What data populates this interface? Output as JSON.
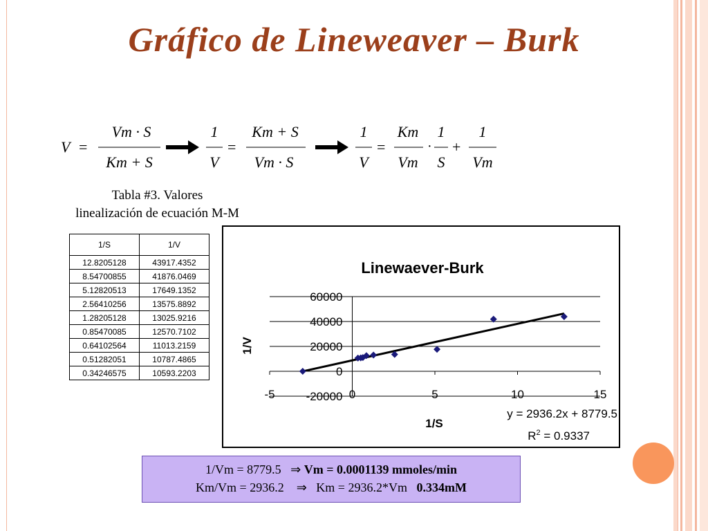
{
  "slide": {
    "title": "Gráfico de Lineweaver – Burk",
    "caption_line1": "Tabla #3. Valores",
    "caption_line2": "linealización de ecuación M-M"
  },
  "equations": {
    "eq1_lhs": "V",
    "eq1_num": "Vm · S",
    "eq1_den": "Km + S",
    "eq2_lhs_num": "1",
    "eq2_lhs_den": "V",
    "eq2_num": "Km + S",
    "eq2_den": "Vm · S",
    "eq3_lhs_num": "1",
    "eq3_lhs_den": "V",
    "eq3_a_num": "Km",
    "eq3_a_den": "Vm",
    "eq3_b_num": "1",
    "eq3_b_den": "S",
    "eq3_c_num": "1",
    "eq3_c_den": "Vm"
  },
  "table": {
    "headers": [
      "1/S",
      "1/V"
    ],
    "rows": [
      [
        "12.8205128",
        "43917.4352"
      ],
      [
        "8.54700855",
        "41876.0469"
      ],
      [
        "5.12820513",
        "17649.1352"
      ],
      [
        "2.56410256",
        "13575.8892"
      ],
      [
        "1.28205128",
        "13025.9216"
      ],
      [
        "0.85470085",
        "12570.7102"
      ],
      [
        "0.64102564",
        "11013.2159"
      ],
      [
        "0.51282051",
        "10787.4865"
      ],
      [
        "0.34246575",
        "10593.2203"
      ]
    ]
  },
  "chart_data": {
    "type": "scatter",
    "title": "Linewaever-Burk",
    "xlabel": "1/S",
    "ylabel": "1/V",
    "xlim": [
      -5,
      15
    ],
    "ylim": [
      -20000,
      60000
    ],
    "x_ticks": [
      "-5",
      "0",
      "5",
      "10",
      "15"
    ],
    "y_ticks": [
      "60000",
      "40000",
      "20000",
      "0",
      "-20000"
    ],
    "grid": "horizontal",
    "points": [
      {
        "x": 12.8205128,
        "y": 43917.4352
      },
      {
        "x": 8.54700855,
        "y": 41876.0469
      },
      {
        "x": 5.12820513,
        "y": 17649.1352
      },
      {
        "x": 2.56410256,
        "y": 13575.8892
      },
      {
        "x": 1.28205128,
        "y": 13025.9216
      },
      {
        "x": 0.85470085,
        "y": 12570.7102
      },
      {
        "x": 0.64102564,
        "y": 11013.2159
      },
      {
        "x": 0.51282051,
        "y": 10787.4865
      },
      {
        "x": 0.34246575,
        "y": 10593.2203
      },
      {
        "x": -3.0,
        "y": 0
      }
    ],
    "trendline": {
      "slope": 2936.2,
      "intercept": 8779.5,
      "x_from": -3.0,
      "x_to": 12.8205128
    },
    "trend_equation": "y = 2936.2x + 8779.5",
    "r2_label": "R",
    "r2_sup": "2",
    "r2_value": " = 0.9337",
    "marker_color": "#1a1a7a",
    "line_color": "#000000"
  },
  "results": {
    "line1_plain": "1/Vm = 8779.5",
    "line1_arrow": "⇒",
    "line1_bold": "Vm = 0.0001139 mmoles/min",
    "line2_plain": "Km/Vm = 2936.2",
    "line2_arrow": "⇒",
    "line2_mid": "Km = 2936.2*Vm",
    "line2_bold": "0.334mM"
  },
  "colors": {
    "title": "#9b3f1b",
    "result_bg": "#c9b3f4",
    "accent_circle": "#f9965c",
    "stripe": "#f4b79f"
  }
}
